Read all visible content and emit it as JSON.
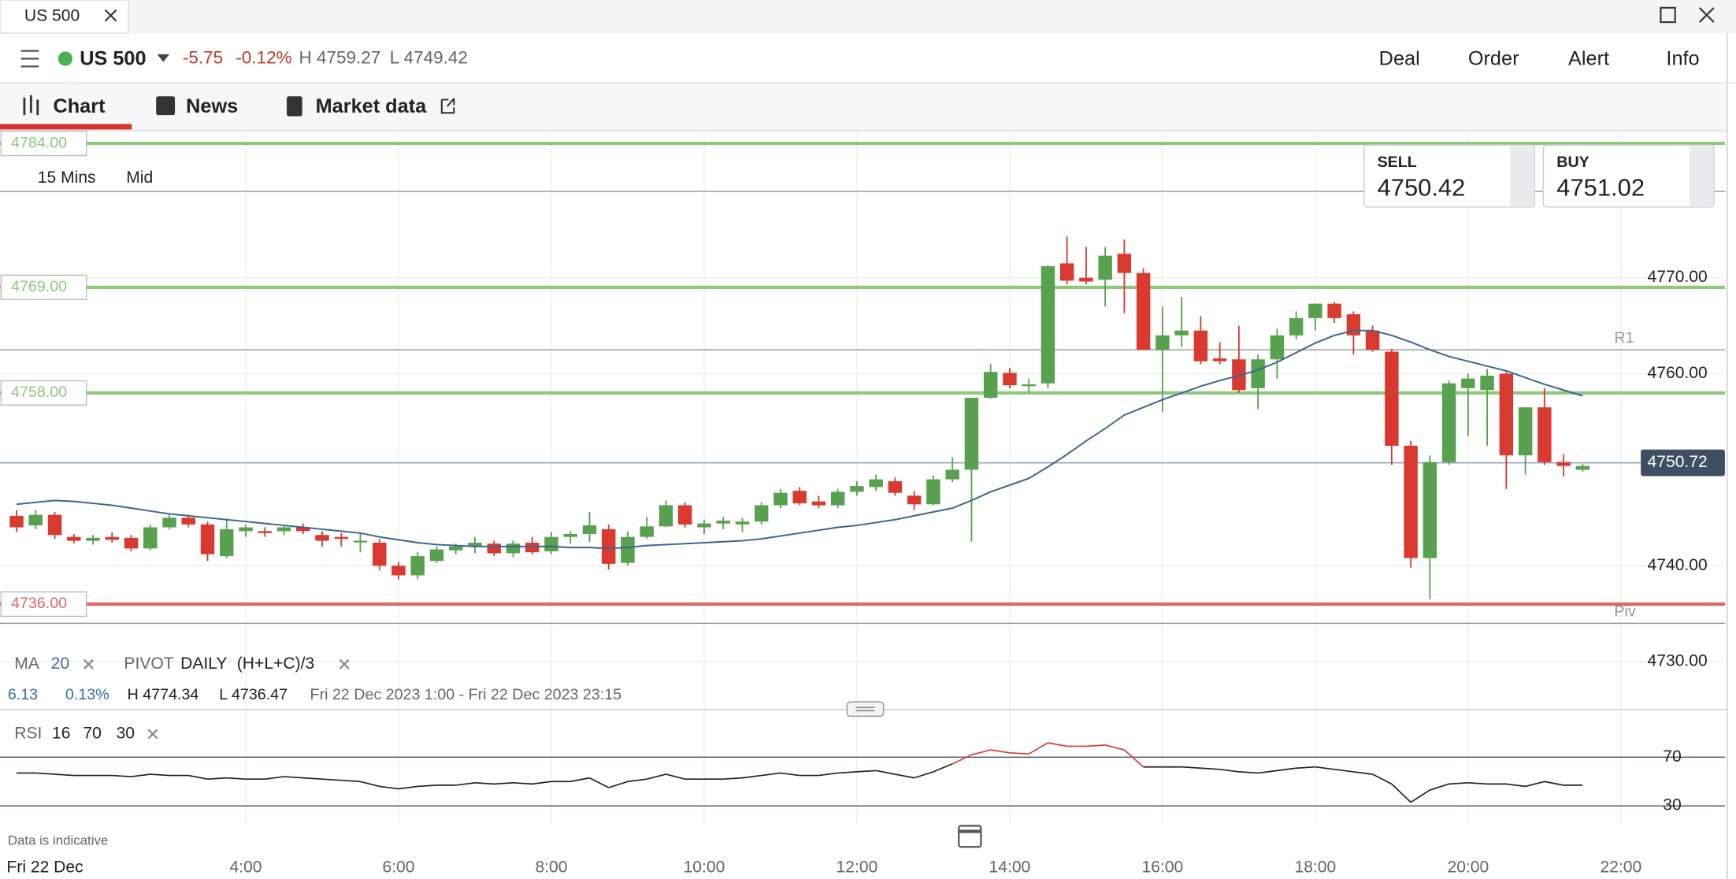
{
  "window": {
    "tab": "US 500"
  },
  "header": {
    "instrument": "US 500",
    "change": "-5.75",
    "change_pct": "-0.12%",
    "high": "H 4759.27",
    "low": "L 4749.42",
    "actions": [
      "Deal",
      "Order",
      "Alert",
      "Info"
    ]
  },
  "tabs": [
    "Chart",
    "News",
    "Market data"
  ],
  "chart": {
    "type": "candlestick",
    "timeframe": "15 Mins",
    "price_mode": "Mid",
    "sell": {
      "label": "SELL",
      "price": "4750.42"
    },
    "buy": {
      "label": "BUY",
      "price": "4751.02"
    },
    "x": [
      1,
      1.25,
      1.5,
      1.75,
      2,
      2.25,
      2.5,
      2.75,
      3,
      3.25,
      3.5,
      3.75,
      4,
      4.25,
      4.5,
      4.75,
      5,
      5.25,
      5.5,
      5.75,
      6,
      6.25,
      6.5,
      6.75,
      7,
      7.25,
      7.5,
      7.75,
      8,
      8.25,
      8.5,
      8.75,
      9,
      9.25,
      9.5,
      9.75,
      10,
      10.25,
      10.5,
      10.75,
      11,
      11.25,
      11.5,
      11.75,
      12,
      12.25,
      12.5,
      12.75,
      13,
      13.25,
      13.5,
      13.75,
      14,
      14.25,
      14.5,
      14.75,
      15,
      15.25,
      15.5,
      15.75,
      16,
      16.25,
      16.5,
      16.75,
      17,
      17.25,
      17.5,
      17.75,
      18,
      18.25,
      18.5,
      18.75,
      19,
      19.25,
      19.5,
      19.75,
      20,
      20.25,
      20.5,
      20.75,
      21,
      21.25,
      21.5
    ],
    "candles": [
      [
        4745.2,
        4745.8,
        4743.5,
        4744.0
      ],
      [
        4744.2,
        4745.8,
        4743.8,
        4745.3
      ],
      [
        4745.3,
        4745.6,
        4742.8,
        4743.2
      ],
      [
        4743.0,
        4743.3,
        4742.3,
        4742.6
      ],
      [
        4742.6,
        4743.2,
        4742.2,
        4742.9
      ],
      [
        4743.0,
        4743.5,
        4742.4,
        4742.7
      ],
      [
        4742.9,
        4743.2,
        4741.5,
        4741.8
      ],
      [
        4741.8,
        4744.3,
        4741.6,
        4744.0
      ],
      [
        4744.0,
        4745.3,
        4743.8,
        4745.0
      ],
      [
        4745.0,
        4745.3,
        4744.0,
        4744.3
      ],
      [
        4744.3,
        4744.6,
        4740.5,
        4741.2
      ],
      [
        4741.0,
        4744.9,
        4740.8,
        4743.8
      ],
      [
        4743.6,
        4744.3,
        4743.0,
        4744.0
      ],
      [
        4743.6,
        4744.0,
        4743.0,
        4743.4
      ],
      [
        4743.6,
        4744.1,
        4743.2,
        4744.0
      ],
      [
        4744.0,
        4744.4,
        4743.3,
        4743.6
      ],
      [
        4743.2,
        4743.6,
        4742.0,
        4742.6
      ],
      [
        4743.0,
        4743.4,
        4742.0,
        4742.8
      ],
      [
        4742.6,
        4743.4,
        4741.4,
        4742.6
      ],
      [
        4742.4,
        4742.8,
        4739.5,
        4740.0
      ],
      [
        4740.0,
        4740.4,
        4738.6,
        4739.0
      ],
      [
        4739.0,
        4741.4,
        4738.6,
        4741.0
      ],
      [
        4740.5,
        4742.0,
        4740.3,
        4741.7
      ],
      [
        4741.6,
        4742.3,
        4741.2,
        4742.0
      ],
      [
        4742.0,
        4743.0,
        4741.3,
        4742.4
      ],
      [
        4742.3,
        4742.6,
        4741.0,
        4741.3
      ],
      [
        4741.3,
        4742.6,
        4740.9,
        4742.3
      ],
      [
        4742.4,
        4743.0,
        4741.2,
        4741.4
      ],
      [
        4741.5,
        4743.5,
        4741.2,
        4743.0
      ],
      [
        4743.0,
        4743.6,
        4742.3,
        4743.3
      ],
      [
        4743.3,
        4745.6,
        4742.5,
        4744.2
      ],
      [
        4743.8,
        4744.3,
        4739.6,
        4740.2
      ],
      [
        4740.3,
        4743.6,
        4740.0,
        4743.0
      ],
      [
        4743.0,
        4745.1,
        4742.8,
        4744.1
      ],
      [
        4744.1,
        4746.8,
        4744.0,
        4746.3
      ],
      [
        4746.3,
        4746.6,
        4744.0,
        4744.3
      ],
      [
        4744.0,
        4744.8,
        4743.3,
        4744.4
      ],
      [
        4744.4,
        4745.1,
        4743.8,
        4744.7
      ],
      [
        4744.3,
        4745.0,
        4743.5,
        4744.6
      ],
      [
        4744.6,
        4746.6,
        4744.3,
        4746.3
      ],
      [
        4746.3,
        4748.0,
        4746.0,
        4747.6
      ],
      [
        4747.8,
        4748.2,
        4746.3,
        4746.5
      ],
      [
        4746.7,
        4747.3,
        4746.0,
        4746.3
      ],
      [
        4746.3,
        4748.0,
        4746.0,
        4747.7
      ],
      [
        4747.7,
        4748.8,
        4747.3,
        4748.3
      ],
      [
        4748.2,
        4749.5,
        4747.8,
        4749.0
      ],
      [
        4748.8,
        4749.2,
        4747.3,
        4747.6
      ],
      [
        4747.3,
        4747.8,
        4745.8,
        4746.4
      ],
      [
        4746.4,
        4749.4,
        4746.3,
        4749.0
      ],
      [
        4749.0,
        4751.3,
        4748.7,
        4750.0
      ],
      [
        4750.0,
        4757.5,
        4742.5,
        4757.5
      ],
      [
        4757.5,
        4761.0,
        4757.4,
        4760.2
      ],
      [
        4760.1,
        4760.6,
        4758.5,
        4758.8
      ],
      [
        4758.7,
        4759.5,
        4758.0,
        4758.9
      ],
      [
        4759.0,
        4771.3,
        4758.5,
        4771.2
      ],
      [
        4771.5,
        4774.3,
        4769.3,
        4769.7
      ],
      [
        4770.0,
        4773.2,
        4769.3,
        4769.6
      ],
      [
        4769.8,
        4773.2,
        4767.0,
        4772.3
      ],
      [
        4772.5,
        4774.0,
        4766.3,
        4770.5
      ],
      [
        4770.5,
        4771.0,
        4762.5,
        4762.5
      ],
      [
        4762.5,
        4767.0,
        4756.0,
        4764.0
      ],
      [
        4764.0,
        4768.0,
        4762.8,
        4764.5
      ],
      [
        4764.5,
        4766.0,
        4761.0,
        4761.3
      ],
      [
        4761.6,
        4763.3,
        4761.0,
        4761.3
      ],
      [
        4761.5,
        4765.0,
        4758.0,
        4758.3
      ],
      [
        4758.5,
        4762.0,
        4756.3,
        4761.5
      ],
      [
        4761.5,
        4764.7,
        4759.5,
        4764.0
      ],
      [
        4764.0,
        4766.5,
        4763.6,
        4765.8
      ],
      [
        4765.8,
        4767.3,
        4764.5,
        4767.3
      ],
      [
        4767.3,
        4767.5,
        4765.3,
        4765.8
      ],
      [
        4766.2,
        4766.5,
        4762.0,
        4764.0
      ],
      [
        4764.5,
        4765.0,
        4762.3,
        4762.5
      ],
      [
        4762.3,
        4762.6,
        4750.5,
        4752.5
      ],
      [
        4752.5,
        4753.0,
        4739.8,
        4740.8
      ],
      [
        4740.8,
        4751.5,
        4736.5,
        4750.8
      ],
      [
        4750.8,
        4759.3,
        4750.5,
        4759.0
      ],
      [
        4758.5,
        4760.0,
        4753.5,
        4759.5
      ],
      [
        4758.3,
        4760.5,
        4752.5,
        4759.8
      ],
      [
        4760.0,
        4760.2,
        4748.0,
        4751.5
      ],
      [
        4751.5,
        4756.5,
        4749.5,
        4756.5
      ],
      [
        4756.5,
        4758.5,
        4750.5,
        4750.8
      ],
      [
        4750.8,
        4751.6,
        4749.3,
        4750.4
      ],
      [
        4750.0,
        4750.6,
        4749.8,
        4750.4
      ]
    ],
    "ma": [
      4746.4,
      4746.6,
      4746.8,
      4746.7,
      4746.5,
      4746.3,
      4746.0,
      4745.7,
      4745.4,
      4745.2,
      4745.0,
      4744.8,
      4744.6,
      4744.4,
      4744.2,
      4744.0,
      4743.8,
      4743.6,
      4743.4,
      4743.0,
      4742.7,
      4742.4,
      4742.2,
      4742.1,
      4742.0,
      4742.0,
      4742.0,
      4742.0,
      4742.0,
      4741.9,
      4741.9,
      4741.8,
      4741.9,
      4742.1,
      4742.2,
      4742.3,
      4742.4,
      4742.5,
      4742.6,
      4742.8,
      4743.1,
      4743.4,
      4743.7,
      4744.0,
      4744.2,
      4744.5,
      4744.8,
      4745.2,
      4745.6,
      4746.0,
      4746.8,
      4747.7,
      4748.4,
      4749.1,
      4750.3,
      4751.6,
      4753.0,
      4754.3,
      4755.7,
      4756.5,
      4757.3,
      4758.0,
      4758.7,
      4759.3,
      4759.8,
      4760.4,
      4761.2,
      4762.2,
      4763.2,
      4764.0,
      4764.5,
      4764.5,
      4764.0,
      4763.3,
      4762.5,
      4761.8,
      4761.3,
      4760.8,
      4760.3,
      4759.6,
      4758.9,
      4758.3,
      4757.7
    ],
    "ylim": [
      4725.7,
      4785.1
    ],
    "yticks": [
      {
        "value": 4730,
        "label": "4730.00"
      },
      {
        "value": 4740,
        "label": "4740.00"
      },
      {
        "value": 4760,
        "label": "4760.00"
      },
      {
        "value": 4770,
        "label": "4770.00"
      }
    ],
    "xlim": [
      0.783,
      23.362
    ],
    "xticks": [
      {
        "value": 4,
        "label": "4:00"
      },
      {
        "value": 6,
        "label": "6:00"
      },
      {
        "value": 8,
        "label": "8:00"
      },
      {
        "value": 10,
        "label": "10:00"
      },
      {
        "value": 12,
        "label": "12:00"
      },
      {
        "value": 14,
        "label": "14:00"
      },
      {
        "value": 16,
        "label": "16:00"
      },
      {
        "value": 18,
        "label": "18:00"
      },
      {
        "value": 20,
        "label": "20:00"
      },
      {
        "value": 22,
        "label": "22:00"
      }
    ],
    "date_label": "Fri 22 Dec",
    "levels": [
      {
        "value": 4784,
        "label": "4784.00",
        "color": "#8cc97a"
      },
      {
        "value": 4769,
        "label": "4769.00",
        "color": "#8cc97a"
      },
      {
        "value": 4758,
        "label": "4758.00",
        "color": "#8cc97a"
      },
      {
        "value": 4736,
        "label": "4736.00",
        "color": "#e06666"
      }
    ],
    "pivots": [
      {
        "value": 4779
      },
      {
        "name": "R1",
        "value": 4762.5
      },
      {
        "name": "Piv",
        "value": 4734
      }
    ],
    "last_price": {
      "value": 4750.72,
      "label": "4750.72"
    },
    "up_color": "#58a14e",
    "down_color": "#d93a2f",
    "ma_color": "#3a6592",
    "indicators": {
      "ma": {
        "label": "MA",
        "period": "20"
      },
      "pivot": {
        "label": "PIVOT",
        "period": "DAILY",
        "formula": "(H+L+C)/3"
      }
    },
    "stats": {
      "change": "6.13",
      "change_pct": "0.13%",
      "high": "H 4774.34",
      "low": "L 4736.47",
      "range": "Fri 22 Dec 2023 1:00 - Fri 22 Dec 2023 23:15"
    },
    "rsi": {
      "label": "RSI",
      "period": "16",
      "upper": "70",
      "lower": "30",
      "values": [
        57,
        57,
        56,
        55,
        55,
        55,
        54,
        56,
        55,
        55,
        52,
        53,
        52,
        52,
        54,
        53,
        52,
        51,
        50,
        46,
        44,
        46,
        47,
        47,
        49,
        48,
        49,
        48,
        50,
        50,
        53,
        45,
        50,
        52,
        56,
        52,
        52,
        52,
        53,
        55,
        57,
        55,
        55,
        57,
        58,
        59,
        56,
        53,
        58,
        64.5,
        72,
        76,
        73.6,
        72.7,
        81.8,
        79,
        79,
        80,
        76,
        62,
        62,
        62,
        61,
        60,
        58,
        57,
        59,
        61,
        62,
        60,
        58,
        56,
        48,
        33,
        43,
        48,
        49,
        48,
        48,
        46,
        50,
        47,
        47
      ],
      "ylim": [
        14.5,
        100.9
      ],
      "yticks": [
        70,
        30
      ],
      "color": "#222",
      "over_color": "#d93a2f"
    },
    "note": "Data is indicative"
  }
}
